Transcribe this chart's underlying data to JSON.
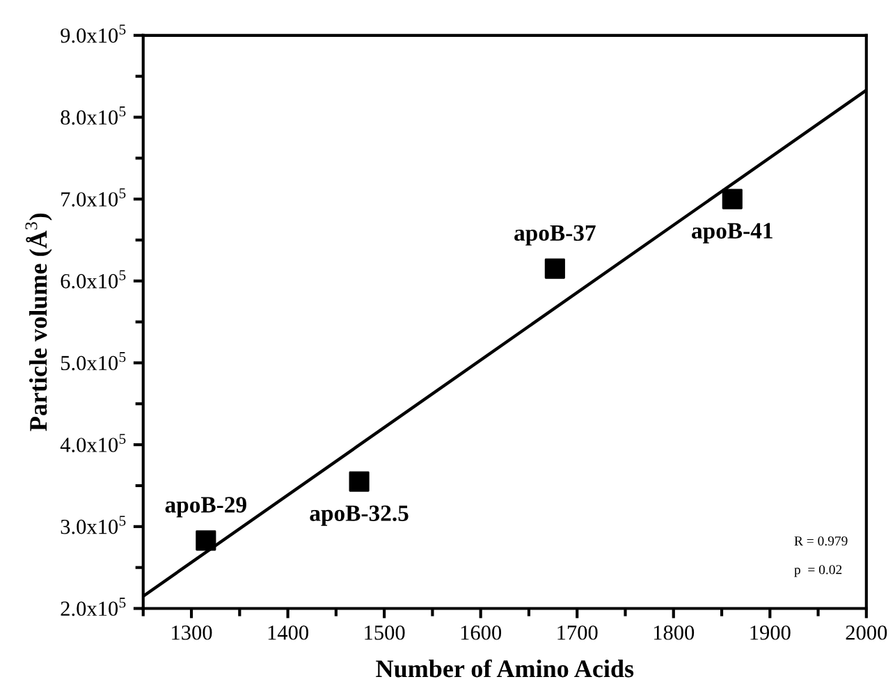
{
  "chart_data": {
    "type": "scatter",
    "xlabel": "Number of Amino Acids",
    "ylabel": "Particle volume (Å$^{3}$)",
    "x": [
      1315,
      1474,
      1677,
      1861
    ],
    "series": [
      {
        "color": "#000000",
        "marker": "square",
        "values": [
          283000,
          355000,
          615000,
          700000
        ]
      },
      {
        "type": "line",
        "color": "#000000",
        "marker": "none",
        "line_style": "solid",
        "x": [
          1250,
          2000
        ],
        "values": [
          215000,
          833000
        ]
      }
    ],
    "xlim": [
      1250,
      2000
    ],
    "xticks": [
      {
        "value": 1250,
        "label": null
      },
      1300,
      {
        "value": 1350,
        "label": null
      },
      1400,
      {
        "value": 1450,
        "label": null
      },
      1500,
      {
        "value": 1550,
        "label": null
      },
      1600,
      {
        "value": 1650,
        "label": null
      },
      1700,
      {
        "value": 1750,
        "label": null
      },
      1800,
      {
        "value": 1850,
        "label": null
      },
      1900,
      {
        "value": 1950,
        "label": null
      },
      2000
    ],
    "ylim": [
      200000,
      900000
    ],
    "yticks": [
      {
        "value": 200000,
        "label": "2.0x10$^{5}$"
      },
      {
        "value": 250000,
        "label": null
      },
      {
        "value": 300000,
        "label": "3.0x10$^{5}$"
      },
      {
        "value": 350000,
        "label": null
      },
      {
        "value": 400000,
        "label": "4.0x10$^{5}$"
      },
      {
        "value": 450000,
        "label": null
      },
      {
        "value": 500000,
        "label": "5.0x10$^{5}$"
      },
      {
        "value": 550000,
        "label": null
      },
      {
        "value": 600000,
        "label": "6.0x10$^{5}$"
      },
      {
        "value": 650000,
        "label": null
      },
      {
        "value": 700000,
        "label": "7.0x10$^{5}$"
      },
      {
        "value": 750000,
        "label": null
      },
      {
        "value": 800000,
        "label": "8.0x10$^{5}$"
      },
      {
        "value": 850000,
        "label": null
      },
      {
        "value": 900000,
        "label": "9.0x10$^{5}$"
      }
    ],
    "grid": false,
    "annotations": [
      {
        "text": "apoB-29",
        "x": 1315,
        "y": 283000
      },
      {
        "text": "apoB-32.5",
        "x": 1474,
        "y": 355000
      },
      {
        "text": "apoB-37",
        "x": 1677,
        "y": 615000
      },
      {
        "text": "apoB-41",
        "x": 1861,
        "y": 700000
      },
      "R = 0.979",
      "p  = 0.02"
    ]
  }
}
